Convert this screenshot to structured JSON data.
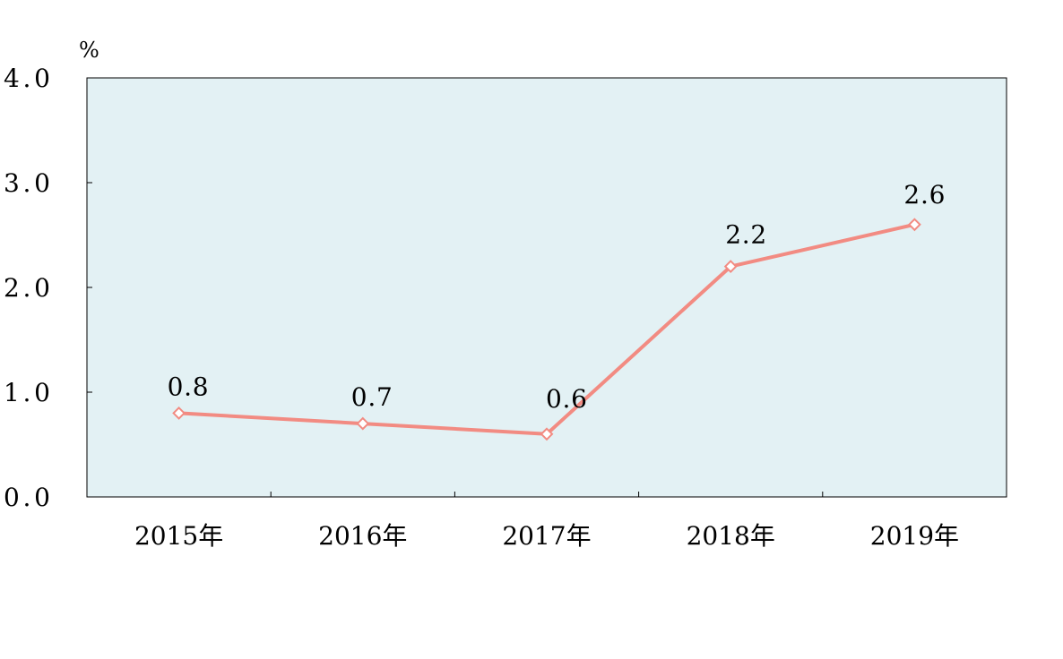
{
  "chart_data": {
    "type": "line",
    "categories": [
      "2015年",
      "2016年",
      "2017年",
      "2018年",
      "2019年"
    ],
    "series": [
      {
        "values": [
          0.8,
          0.7,
          0.6,
          2.2,
          2.6
        ],
        "color": "#f28b82"
      }
    ],
    "data_labels": [
      "0.8",
      "0.7",
      "0.6",
      "2.2",
      "2.6"
    ],
    "y_ticks": [
      "0.0",
      "1.0",
      "2.0",
      "3.0",
      "4.0"
    ],
    "y_unit": "%",
    "ylim": [
      0,
      4
    ],
    "plot_background": "#e3f1f4",
    "marker": "diamond-open",
    "grid": false,
    "legend": "none"
  }
}
